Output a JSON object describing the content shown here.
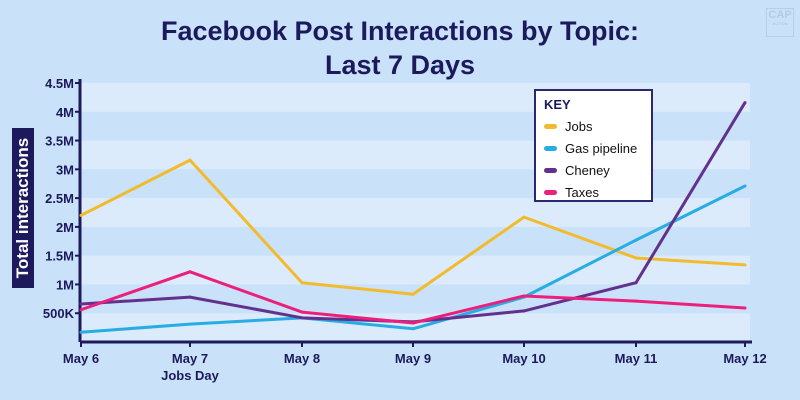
{
  "logo": {
    "text": "CAP",
    "subtext": "ACTION"
  },
  "chart_data": {
    "type": "line",
    "title": "Facebook Post Interactions by Topic:",
    "subtitle": "Last 7 Days",
    "ylabel": "Total interactions",
    "xlabel": "",
    "categories": [
      "May 6",
      "May 7",
      "May 8",
      "May 9",
      "May 10",
      "May 11",
      "May 12"
    ],
    "x_annotations": {
      "May 7": "Jobs Day"
    },
    "ylim": [
      0,
      4500000
    ],
    "yticks": [
      500000,
      1000000,
      1500000,
      2000000,
      2500000,
      3000000,
      3500000,
      4000000,
      4500000
    ],
    "ytick_labels": [
      "500K",
      "1M",
      "1.5M",
      "2M",
      "2.5M",
      "3M",
      "3.5M",
      "4M",
      "4.5M"
    ],
    "legend_title": "KEY",
    "legend_position": "top-right",
    "series": [
      {
        "name": "Jobs",
        "color": "#f2bb2d",
        "values": [
          2200000,
          3160000,
          1030000,
          830000,
          2170000,
          1460000,
          1340000
        ]
      },
      {
        "name": "Gas pipeline",
        "color": "#27ade3",
        "values": [
          170000,
          310000,
          420000,
          230000,
          780000,
          1770000,
          2710000
        ]
      },
      {
        "name": "Cheney",
        "color": "#63308e",
        "values": [
          660000,
          780000,
          420000,
          350000,
          540000,
          1030000,
          4160000
        ]
      },
      {
        "name": "Taxes",
        "color": "#ec1f7b",
        "values": [
          560000,
          1220000,
          520000,
          330000,
          800000,
          710000,
          590000
        ]
      }
    ]
  }
}
